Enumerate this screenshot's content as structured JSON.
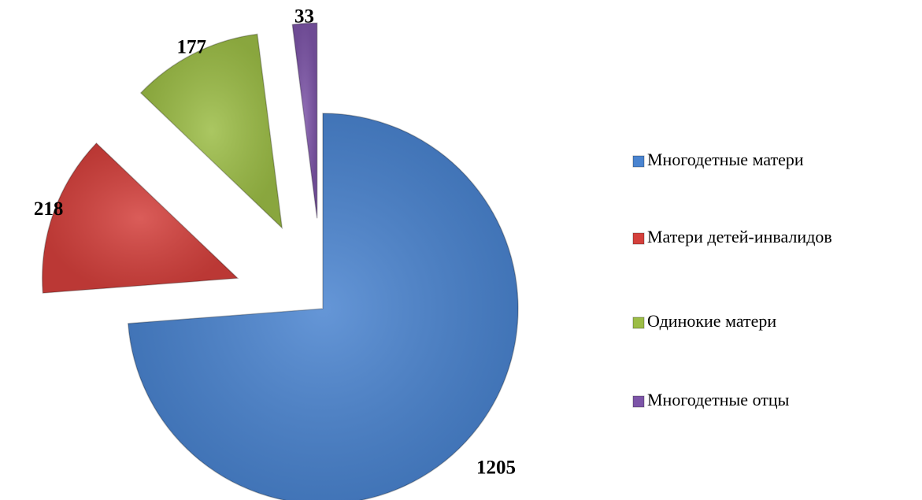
{
  "chart_data": {
    "type": "pie",
    "categories": [
      "Многодетные матери",
      "Матери детей-инвалидов",
      "Одинокие матери",
      "Многодетные отцы"
    ],
    "values": [
      1205,
      218,
      177,
      33
    ],
    "colors": [
      "#4a84d0",
      "#d4403c",
      "#9cbd46",
      "#7d55a8"
    ],
    "legend": "right"
  }
}
